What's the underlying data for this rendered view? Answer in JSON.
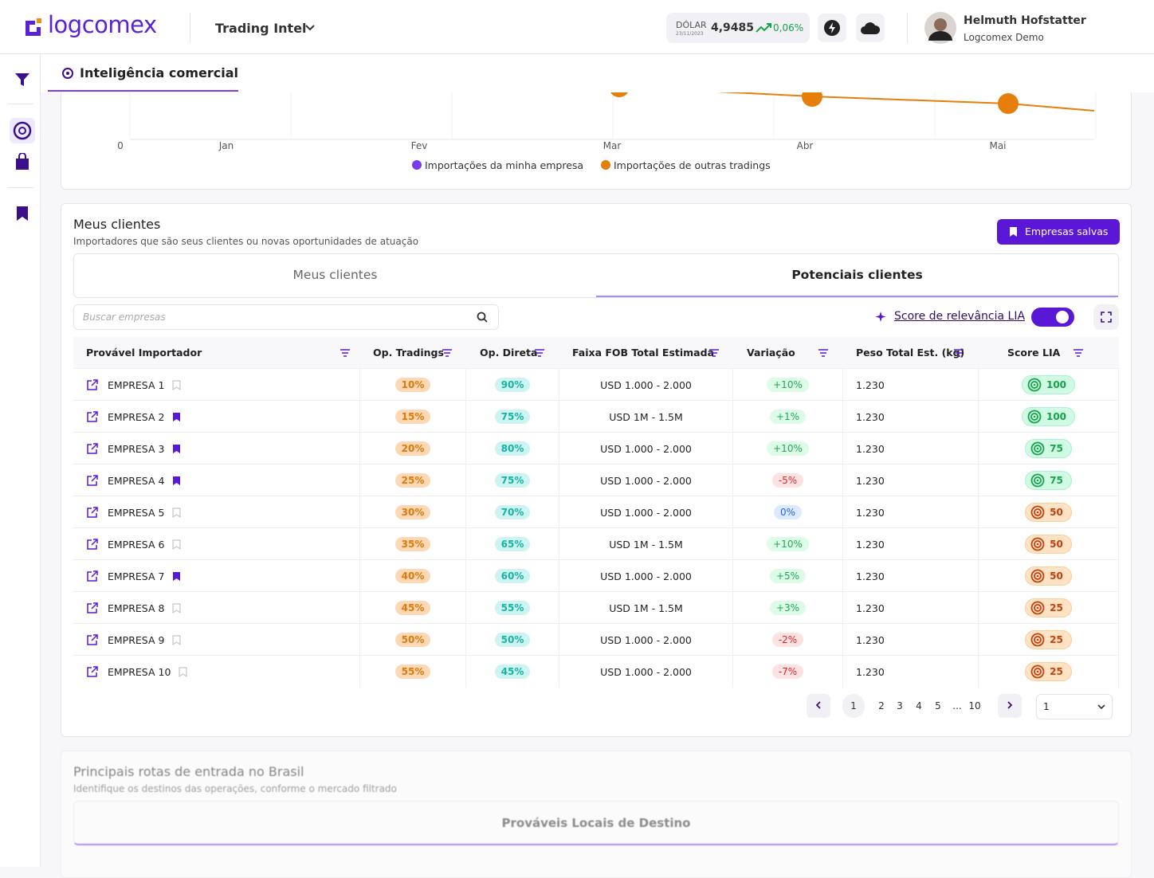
{
  "header": {
    "brand": "logcomex",
    "product": "Trading Intel",
    "dollar_label": "DÓLAR",
    "dollar_date": "23/11/2023",
    "dollar_value": "4,9485",
    "dollar_change": "0,06%",
    "user_name": "Helmuth Hofstatter",
    "user_org": "Logcomex Demo"
  },
  "tab": "Inteligência comercial",
  "trend_chart": {
    "type": "line",
    "yticks": [
      0
    ],
    "categories": [
      "Jan",
      "Fev",
      "Mar",
      "Abr",
      "Mai"
    ],
    "series": [
      {
        "name": "Importações da minha empresa",
        "color": "#7c3aed"
      },
      {
        "name": "Importações de outras tradings",
        "color": "#e67e0a"
      }
    ]
  },
  "clients": {
    "title": "Meus clientes",
    "subtitle": "Importadores que são seus clientes ou novas oportunidades de atuação",
    "saved_button": "Empresas salvas",
    "tabs": [
      "Meus clientes",
      "Potenciais clientes"
    ],
    "active_tab": 1,
    "search_placeholder": "Buscar empresas",
    "score_toggle": "Score de relevância LIA",
    "table": {
      "columns": [
        "Provável Importador",
        "Op. Tradings",
        "Op. Direta",
        "Faixa FOB Total Estimada",
        "Variação",
        "Peso Total Est. (kg)",
        "Score LIA"
      ],
      "rows": [
        [
          "EMPRESA 1",
          "10%",
          "90%",
          "USD 1.000 - 2.000",
          "+10%",
          "1.230",
          100
        ],
        [
          "EMPRESA 2",
          "15%",
          "75%",
          "USD 1M - 1.5M",
          "+1%",
          "1.230",
          100
        ],
        [
          "EMPRESA 3",
          "20%",
          "80%",
          "USD 1.000 - 2.000",
          "+10%",
          "1.230",
          75
        ],
        [
          "EMPRESA 4",
          "25%",
          "75%",
          "USD 1.000 - 2.000",
          "-5%",
          "1.230",
          75
        ],
        [
          "EMPRESA 5",
          "30%",
          "70%",
          "USD 1.000 - 2.000",
          "0%",
          "1.230",
          50
        ],
        [
          "EMPRESA 6",
          "35%",
          "65%",
          "USD 1M - 1.5M",
          "+10%",
          "1.230",
          50
        ],
        [
          "EMPRESA 7",
          "40%",
          "60%",
          "USD 1.000 - 2.000",
          "+5%",
          "1.230",
          50
        ],
        [
          "EMPRESA 8",
          "45%",
          "55%",
          "USD 1M - 1.5M",
          "+3%",
          "1.230",
          25
        ],
        [
          "EMPRESA 9",
          "50%",
          "50%",
          "USD 1.000 - 2.000",
          "-2%",
          "1.230",
          25
        ],
        [
          "EMPRESA 10",
          "55%",
          "45%",
          "USD 1.000 - 2.000",
          "-7%",
          "1.230",
          25
        ]
      ],
      "saved": [
        false,
        true,
        true,
        true,
        false,
        false,
        true,
        false,
        false,
        false
      ]
    },
    "pagination": {
      "pages": [
        "1",
        "2",
        "3",
        "4",
        "5",
        "...",
        "10"
      ],
      "current": 0,
      "page_select": "1"
    }
  },
  "routes": {
    "title": "Principais rotas de entrada no Brasil",
    "subtitle": "Identifique os destinos das operações, conforme o mercado filtrado",
    "tab": "Prováveis Locais de Destino"
  }
}
